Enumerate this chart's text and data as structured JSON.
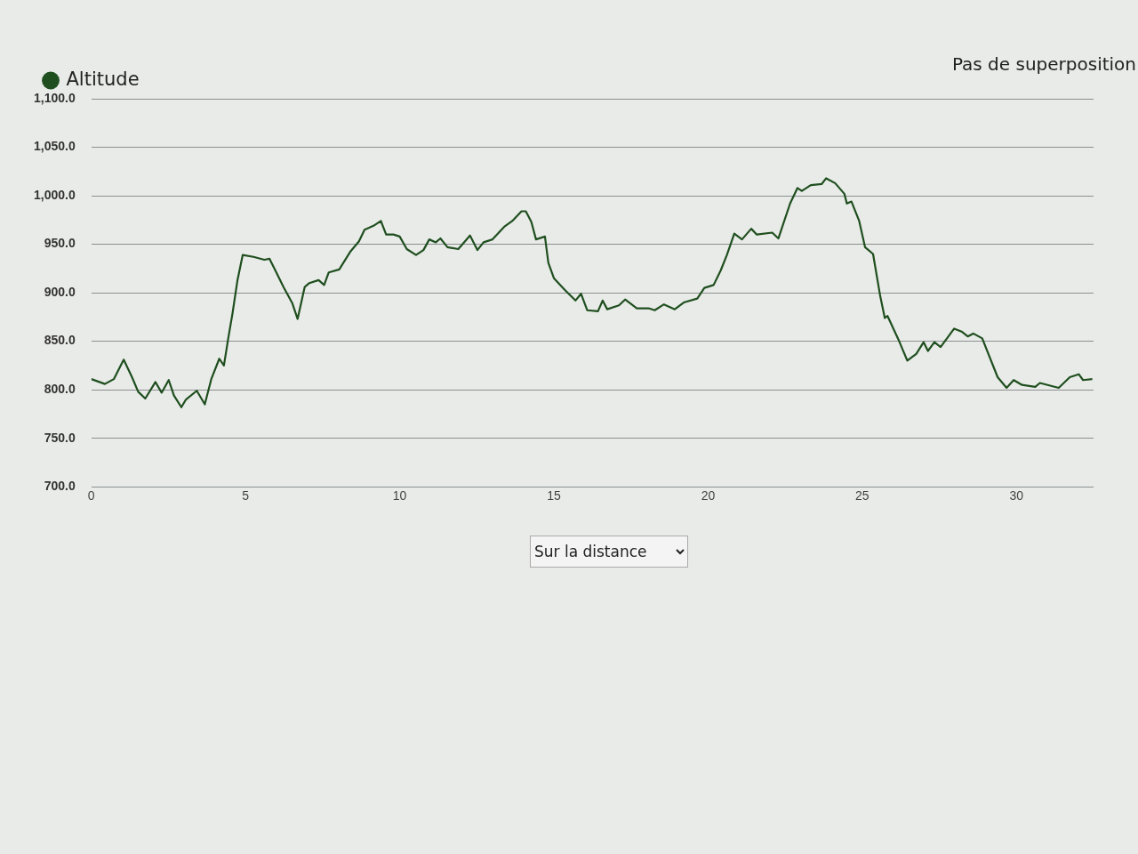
{
  "chart_data": {
    "type": "line",
    "legend": "top left",
    "grid": "y",
    "marker": "none",
    "line_style": "solid",
    "series": [
      {
        "name": "Altitude",
        "color": "#1f4f1f",
        "x": [
          0,
          0.44,
          0.73,
          1.05,
          1.32,
          1.52,
          1.75,
          2.08,
          2.28,
          2.51,
          2.68,
          2.92,
          3.07,
          3.42,
          3.68,
          3.89,
          4.15,
          4.3,
          4.44,
          4.58,
          4.74,
          4.91,
          5.26,
          5.61,
          5.78,
          6.0,
          6.23,
          6.52,
          6.69,
          6.92,
          7.07,
          7.37,
          7.55,
          7.7,
          8.04,
          8.39,
          8.68,
          8.86,
          9.15,
          9.39,
          9.56,
          9.8,
          10.0,
          10.23,
          10.53,
          10.77,
          10.96,
          11.17,
          11.32,
          11.55,
          11.9,
          12.28,
          12.52,
          12.72,
          13.01,
          13.39,
          13.65,
          13.95,
          14.09,
          14.27,
          14.42,
          14.71,
          14.82,
          15.0,
          15.35,
          15.7,
          15.88,
          16.08,
          16.43,
          16.58,
          16.73,
          17.11,
          17.31,
          17.69,
          18.07,
          18.27,
          18.57,
          18.92,
          19.21,
          19.65,
          19.88,
          20.18,
          20.41,
          20.61,
          20.85,
          21.1,
          21.4,
          21.58,
          22.08,
          22.28,
          22.66,
          22.9,
          23.04,
          23.33,
          23.68,
          23.83,
          24.12,
          24.42,
          24.5,
          24.65,
          24.9,
          25.09,
          25.35,
          25.58,
          25.73,
          25.82,
          26.17,
          26.46,
          26.75,
          26.99,
          27.13,
          27.34,
          27.54,
          27.98,
          28.22,
          28.42,
          28.6,
          28.89,
          29.39,
          29.68,
          29.91,
          30.18,
          30.61,
          30.76,
          31.37,
          31.73,
          32.02,
          32.16,
          32.46
        ],
        "values": [
          811,
          806,
          811,
          831,
          813,
          798,
          791,
          808,
          797,
          810,
          794,
          782,
          790,
          799,
          785,
          811,
          832,
          825,
          853,
          879,
          913,
          939,
          937,
          934,
          935,
          921,
          906,
          889,
          873,
          906,
          910,
          913,
          908,
          921,
          924,
          942,
          953,
          965,
          969,
          974,
          960,
          960,
          958,
          945,
          939,
          944,
          955,
          952,
          956,
          947,
          945,
          959,
          944,
          952,
          955,
          968,
          974,
          984,
          984,
          973,
          955,
          958,
          931,
          915,
          903,
          892,
          899,
          882,
          881,
          892,
          883,
          887,
          893,
          884,
          884,
          882,
          888,
          883,
          890,
          894,
          905,
          908,
          923,
          939,
          961,
          955,
          966,
          960,
          962,
          956,
          992,
          1008,
          1005,
          1011,
          1012,
          1018,
          1013,
          1002,
          992,
          994,
          974,
          947,
          940,
          897,
          874,
          876,
          852,
          830,
          837,
          849,
          840,
          849,
          844,
          863,
          860,
          855,
          858,
          853,
          813,
          802,
          810,
          805,
          803,
          807,
          802,
          813,
          816,
          810,
          811
        ]
      }
    ],
    "xlim": [
      0,
      32.5
    ],
    "xticks": [
      0,
      5,
      10,
      15,
      20,
      25,
      30
    ],
    "ylim": [
      700,
      1100
    ],
    "yticks": [
      {
        "value": 700,
        "label": "700.0"
      },
      {
        "value": 750,
        "label": "750.0"
      },
      {
        "value": 800,
        "label": "800.0"
      },
      {
        "value": 850,
        "label": "850.0"
      },
      {
        "value": 900,
        "label": "900.0"
      },
      {
        "value": 950,
        "label": "950.0"
      },
      {
        "value": 1000,
        "label": "1,000.0"
      },
      {
        "value": 1050,
        "label": "1,050.0"
      },
      {
        "value": 1100,
        "label": "1,100.0"
      }
    ],
    "annotations": [
      "Pas de superposition",
      "Sur la distance"
    ]
  }
}
